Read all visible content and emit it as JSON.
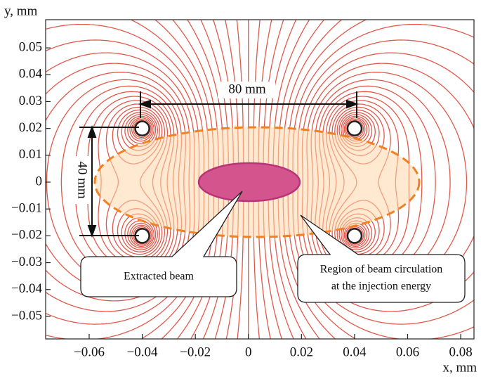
{
  "chart_data": {
    "type": "field",
    "xlabel": "x, mm",
    "ylabel": "y, mm",
    "xlim": [
      -0.0764,
      0.085
    ],
    "ylim": [
      -0.0584,
      0.0605
    ],
    "xticks": [
      {
        "value": -0.06,
        "label": "−0.06"
      },
      {
        "value": -0.04,
        "label": "−0.04"
      },
      {
        "value": -0.02,
        "label": "−0.02"
      },
      0,
      0.02,
      0.04,
      0.06,
      0.08
    ],
    "yticks": [
      0.05,
      0.04,
      0.03,
      0.02,
      0.01,
      0,
      {
        "value": -0.01,
        "label": "−0.01"
      },
      {
        "value": -0.02,
        "label": "−0.02"
      },
      {
        "value": -0.03,
        "label": "−0.03"
      },
      {
        "value": -0.04,
        "label": "−0.04"
      },
      {
        "value": -0.05,
        "label": "−0.05"
      }
    ],
    "dimensions": [
      "80 mm",
      "40 mm"
    ],
    "annotations": [
      {
        "lines": [
          "Extracted beam"
        ]
      },
      {
        "lines": [
          "Region of beam circulation",
          "at the injection energy"
        ]
      }
    ]
  }
}
